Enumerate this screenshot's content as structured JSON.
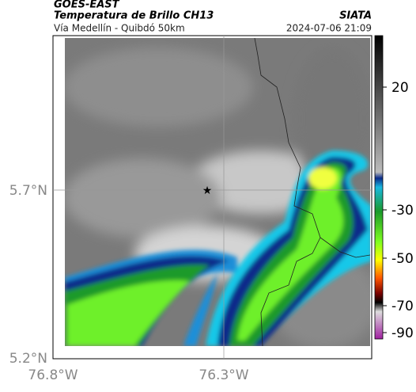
{
  "header": {
    "source": "GOES-EAST",
    "title": "Temperatura de Brillo CH13",
    "subtitle": "Vía Medellín - Quibdó 50km",
    "agency": "SIATA",
    "timestamp": "2024-07-06 21:09"
  },
  "axes": {
    "lat_labels": [
      "5.7°N",
      "5.2°N"
    ],
    "lon_labels": [
      "76.8°W",
      "76.3°W"
    ]
  },
  "colorbar": {
    "ticks": [
      "20",
      "-30",
      "-50",
      "-70",
      "-90"
    ]
  }
}
